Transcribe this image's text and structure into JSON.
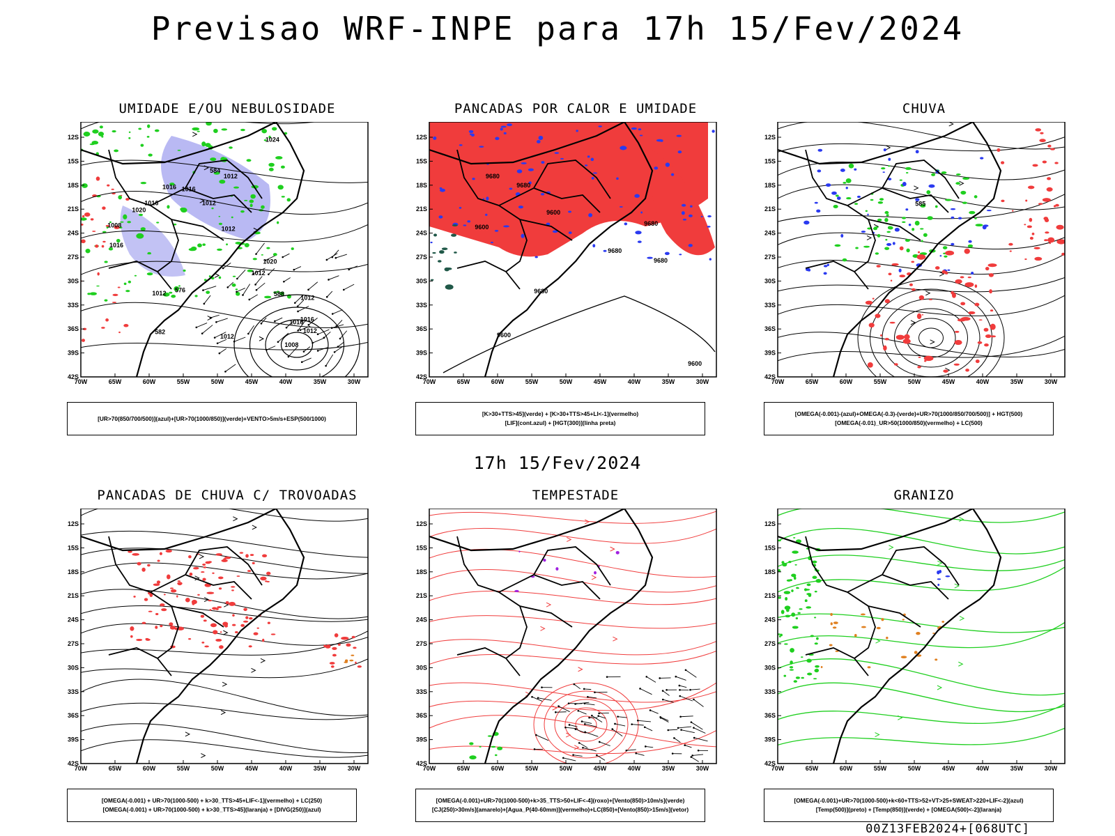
{
  "header": {
    "title": "Previsao WRF-INPE  para 17h 15/Fev/2024"
  },
  "middle": {
    "title": "17h 15/Fev/2024"
  },
  "footer": {
    "run": "00Z13FEB2024+[068UTC]"
  },
  "axes": {
    "lat": [
      "12S",
      "15S",
      "18S",
      "21S",
      "24S",
      "27S",
      "30S",
      "33S",
      "36S",
      "39S",
      "42S"
    ],
    "lon": [
      "70W",
      "65W",
      "60W",
      "55W",
      "50W",
      "45W",
      "40W",
      "35W",
      "30W"
    ]
  },
  "colors": {
    "red": "#f03c3c",
    "green": "#1fcf1f",
    "blue": "#2a3af0",
    "lavender": "#a8a8f0",
    "teal": "#205848",
    "orange": "#e08020",
    "purple": "#a020e0"
  },
  "panels": [
    {
      "title": "UMIDADE E/OU NEBULOSIDADE",
      "legend": [
        "[UR>70(850/700/500)](azul)+[UR>70(1000/850)](verde)+VENTO>5m/s+ESP(500/1000)"
      ],
      "labels": [
        "1012",
        "1012",
        "1012",
        "1012",
        "1016",
        "1016",
        "1016",
        "1020",
        "1016",
        "1012",
        "1012",
        "1016",
        "1020",
        "1024",
        "1008",
        "1016",
        "1012",
        "1012",
        "1008",
        "576",
        "582",
        "588",
        "584"
      ]
    },
    {
      "title": "PANCADAS POR CALOR E UMIDADE",
      "legend": [
        "[K>30+TTS>45](verde) + [K>30+TTS>45+LI<-1](vermelho)",
        "[LIF](cont.azul) + [HGT(300)](linha preta)"
      ],
      "labels": [
        "9680",
        "9680",
        "9680",
        "9680",
        "9680",
        "9600",
        "9680",
        "9600",
        "9600",
        "9600"
      ]
    },
    {
      "title": "CHUVA",
      "legend": [
        "[OMEGA(-0.001)-(azul)+OMEGA(-0.3)-(verde)+UR>70(1000/850/700/500)] + HGT(500)",
        "[OMEGA(-0.01)_UR>50(1000/850)(vermelho) + LC(500)"
      ],
      "labels": [
        "585"
      ]
    },
    {
      "title": "PANCADAS DE CHUVA C/ TROVOADAS",
      "legend": [
        "[OMEGA(-0.001) + UR>70(1000-500) + k>30_TTS>45+LIF<-1](vermelho) + LC(250)",
        "[OMEGA(-0.001) + UR>70(1000-500) + k>30_TTS>45](laranja) + [DIVG(250)](azul)"
      ],
      "labels": []
    },
    {
      "title": "TEMPESTADE",
      "legend": [
        "[OMEGA(-0.001)+UR>70(1000-500)+k>35_TTS>50+LIF<-4](roxo)+[Vento(850)>10m/s](verde)",
        "[CJ(250)>30m/s](amarelo)+[Agua_P(40-60mm)](vermelho)+LC(850)+[Vento(850)>15m/s](vetor)"
      ],
      "labels": []
    },
    {
      "title": "GRANIZO",
      "legend": [
        "[OMEGA(-0.001)+UR>70(1000-500)+k<60+TTS>52+VT>25+SWEAT>220+LIF<-2](azul)",
        "[Temp(500)](preto) + [Temp(850)](verde) + [OMEGA(500)<-2](laranja)"
      ],
      "labels": []
    }
  ]
}
